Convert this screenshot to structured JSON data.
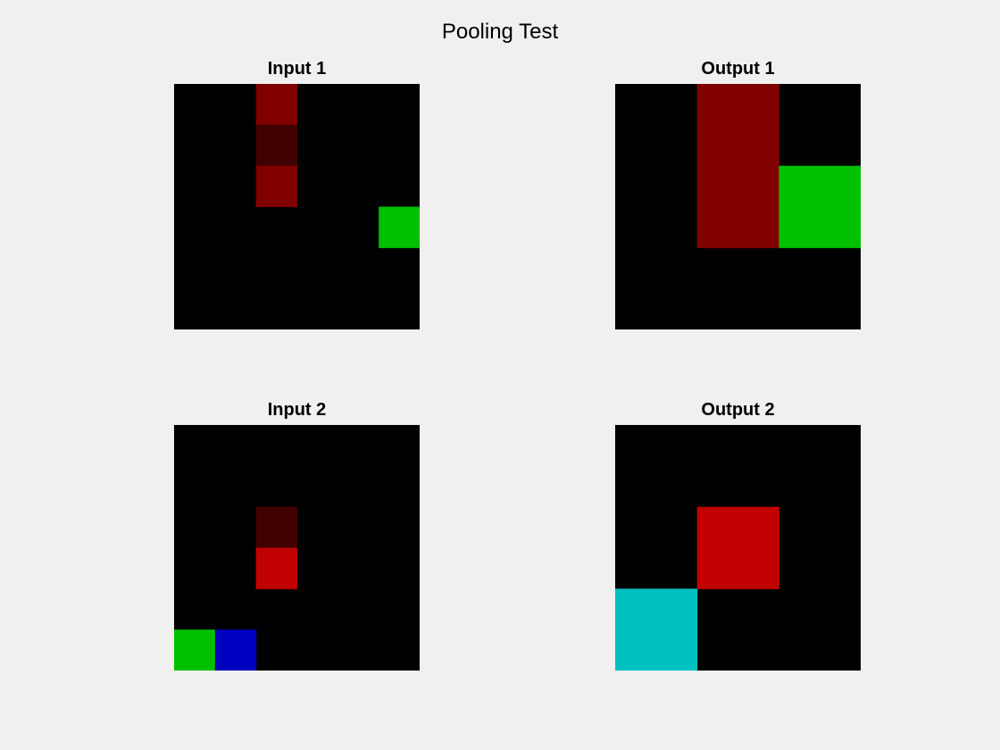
{
  "figure": {
    "title": "Pooling Test"
  },
  "chart_data": [
    {
      "type": "heatmap",
      "title": "Input 1",
      "rows": 6,
      "cols": 6,
      "grid": false,
      "background": "#000000",
      "cells": [
        {
          "row": 0,
          "col": 2,
          "color": "#800000"
        },
        {
          "row": 1,
          "col": 2,
          "color": "#400000"
        },
        {
          "row": 2,
          "col": 2,
          "color": "#800000"
        },
        {
          "row": 3,
          "col": 5,
          "color": "#00c000"
        }
      ]
    },
    {
      "type": "heatmap",
      "title": "Output 1",
      "rows": 3,
      "cols": 3,
      "grid": false,
      "background": "#000000",
      "cells": [
        {
          "row": 0,
          "col": 1,
          "color": "#800000"
        },
        {
          "row": 1,
          "col": 1,
          "color": "#800000"
        },
        {
          "row": 1,
          "col": 2,
          "color": "#00c000"
        }
      ]
    },
    {
      "type": "heatmap",
      "title": "Input 2",
      "rows": 6,
      "cols": 6,
      "grid": false,
      "background": "#000000",
      "cells": [
        {
          "row": 2,
          "col": 2,
          "color": "#400000"
        },
        {
          "row": 3,
          "col": 2,
          "color": "#c00000"
        },
        {
          "row": 5,
          "col": 0,
          "color": "#00c000"
        },
        {
          "row": 5,
          "col": 1,
          "color": "#0000c0"
        }
      ]
    },
    {
      "type": "heatmap",
      "title": "Output 2",
      "rows": 3,
      "cols": 3,
      "grid": false,
      "background": "#000000",
      "cells": [
        {
          "row": 1,
          "col": 1,
          "color": "#c00000"
        },
        {
          "row": 2,
          "col": 0,
          "color": "#00c0c0"
        }
      ]
    }
  ]
}
